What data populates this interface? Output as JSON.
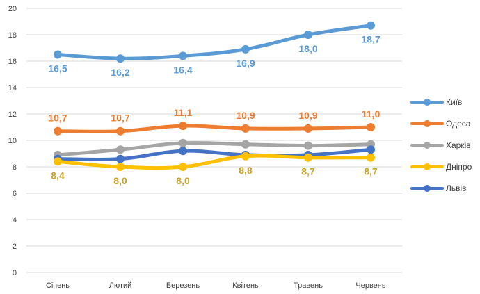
{
  "chart_data": {
    "type": "line",
    "title": "",
    "xlabel": "",
    "ylabel": "",
    "categories": [
      "Січень",
      "Лютий",
      "Березень",
      "Квітень",
      "Травень",
      "Червень"
    ],
    "ylim": [
      0,
      20
    ],
    "yticks": [
      "0",
      "2",
      "4",
      "6",
      "8",
      "10",
      "12",
      "14",
      "16",
      "18",
      "20"
    ],
    "grid": true,
    "legend_position": "right",
    "series": [
      {
        "name": "Київ",
        "color": "#5B9BD5",
        "values": [
          16.5,
          16.2,
          16.4,
          16.9,
          18.0,
          18.7
        ],
        "labels": [
          "16,5",
          "16,2",
          "16,4",
          "16,9",
          "18,0",
          "18,7"
        ],
        "label_position": "below"
      },
      {
        "name": "Одеса",
        "color": "#ED7D31",
        "values": [
          10.7,
          10.7,
          11.1,
          10.9,
          10.9,
          11.0
        ],
        "labels": [
          "10,7",
          "10,7",
          "11,1",
          "10,9",
          "10,9",
          "11,0"
        ],
        "label_position": "above"
      },
      {
        "name": "Харків",
        "color": "#A5A5A5",
        "values": [
          8.9,
          9.3,
          9.8,
          9.7,
          9.6,
          9.7
        ],
        "labels": [],
        "label_position": "none"
      },
      {
        "name": "Дніпро",
        "color": "#FFC000",
        "values": [
          8.4,
          8.0,
          8.0,
          8.8,
          8.7,
          8.7
        ],
        "labels": [
          "8,4",
          "8,0",
          "8,0",
          "8,8",
          "8,7",
          "8,7"
        ],
        "label_position": "below"
      },
      {
        "name": "Львів",
        "color": "#4472C4",
        "values": [
          8.6,
          8.6,
          9.2,
          8.9,
          8.9,
          9.3
        ],
        "labels": [],
        "label_position": "none"
      }
    ]
  }
}
